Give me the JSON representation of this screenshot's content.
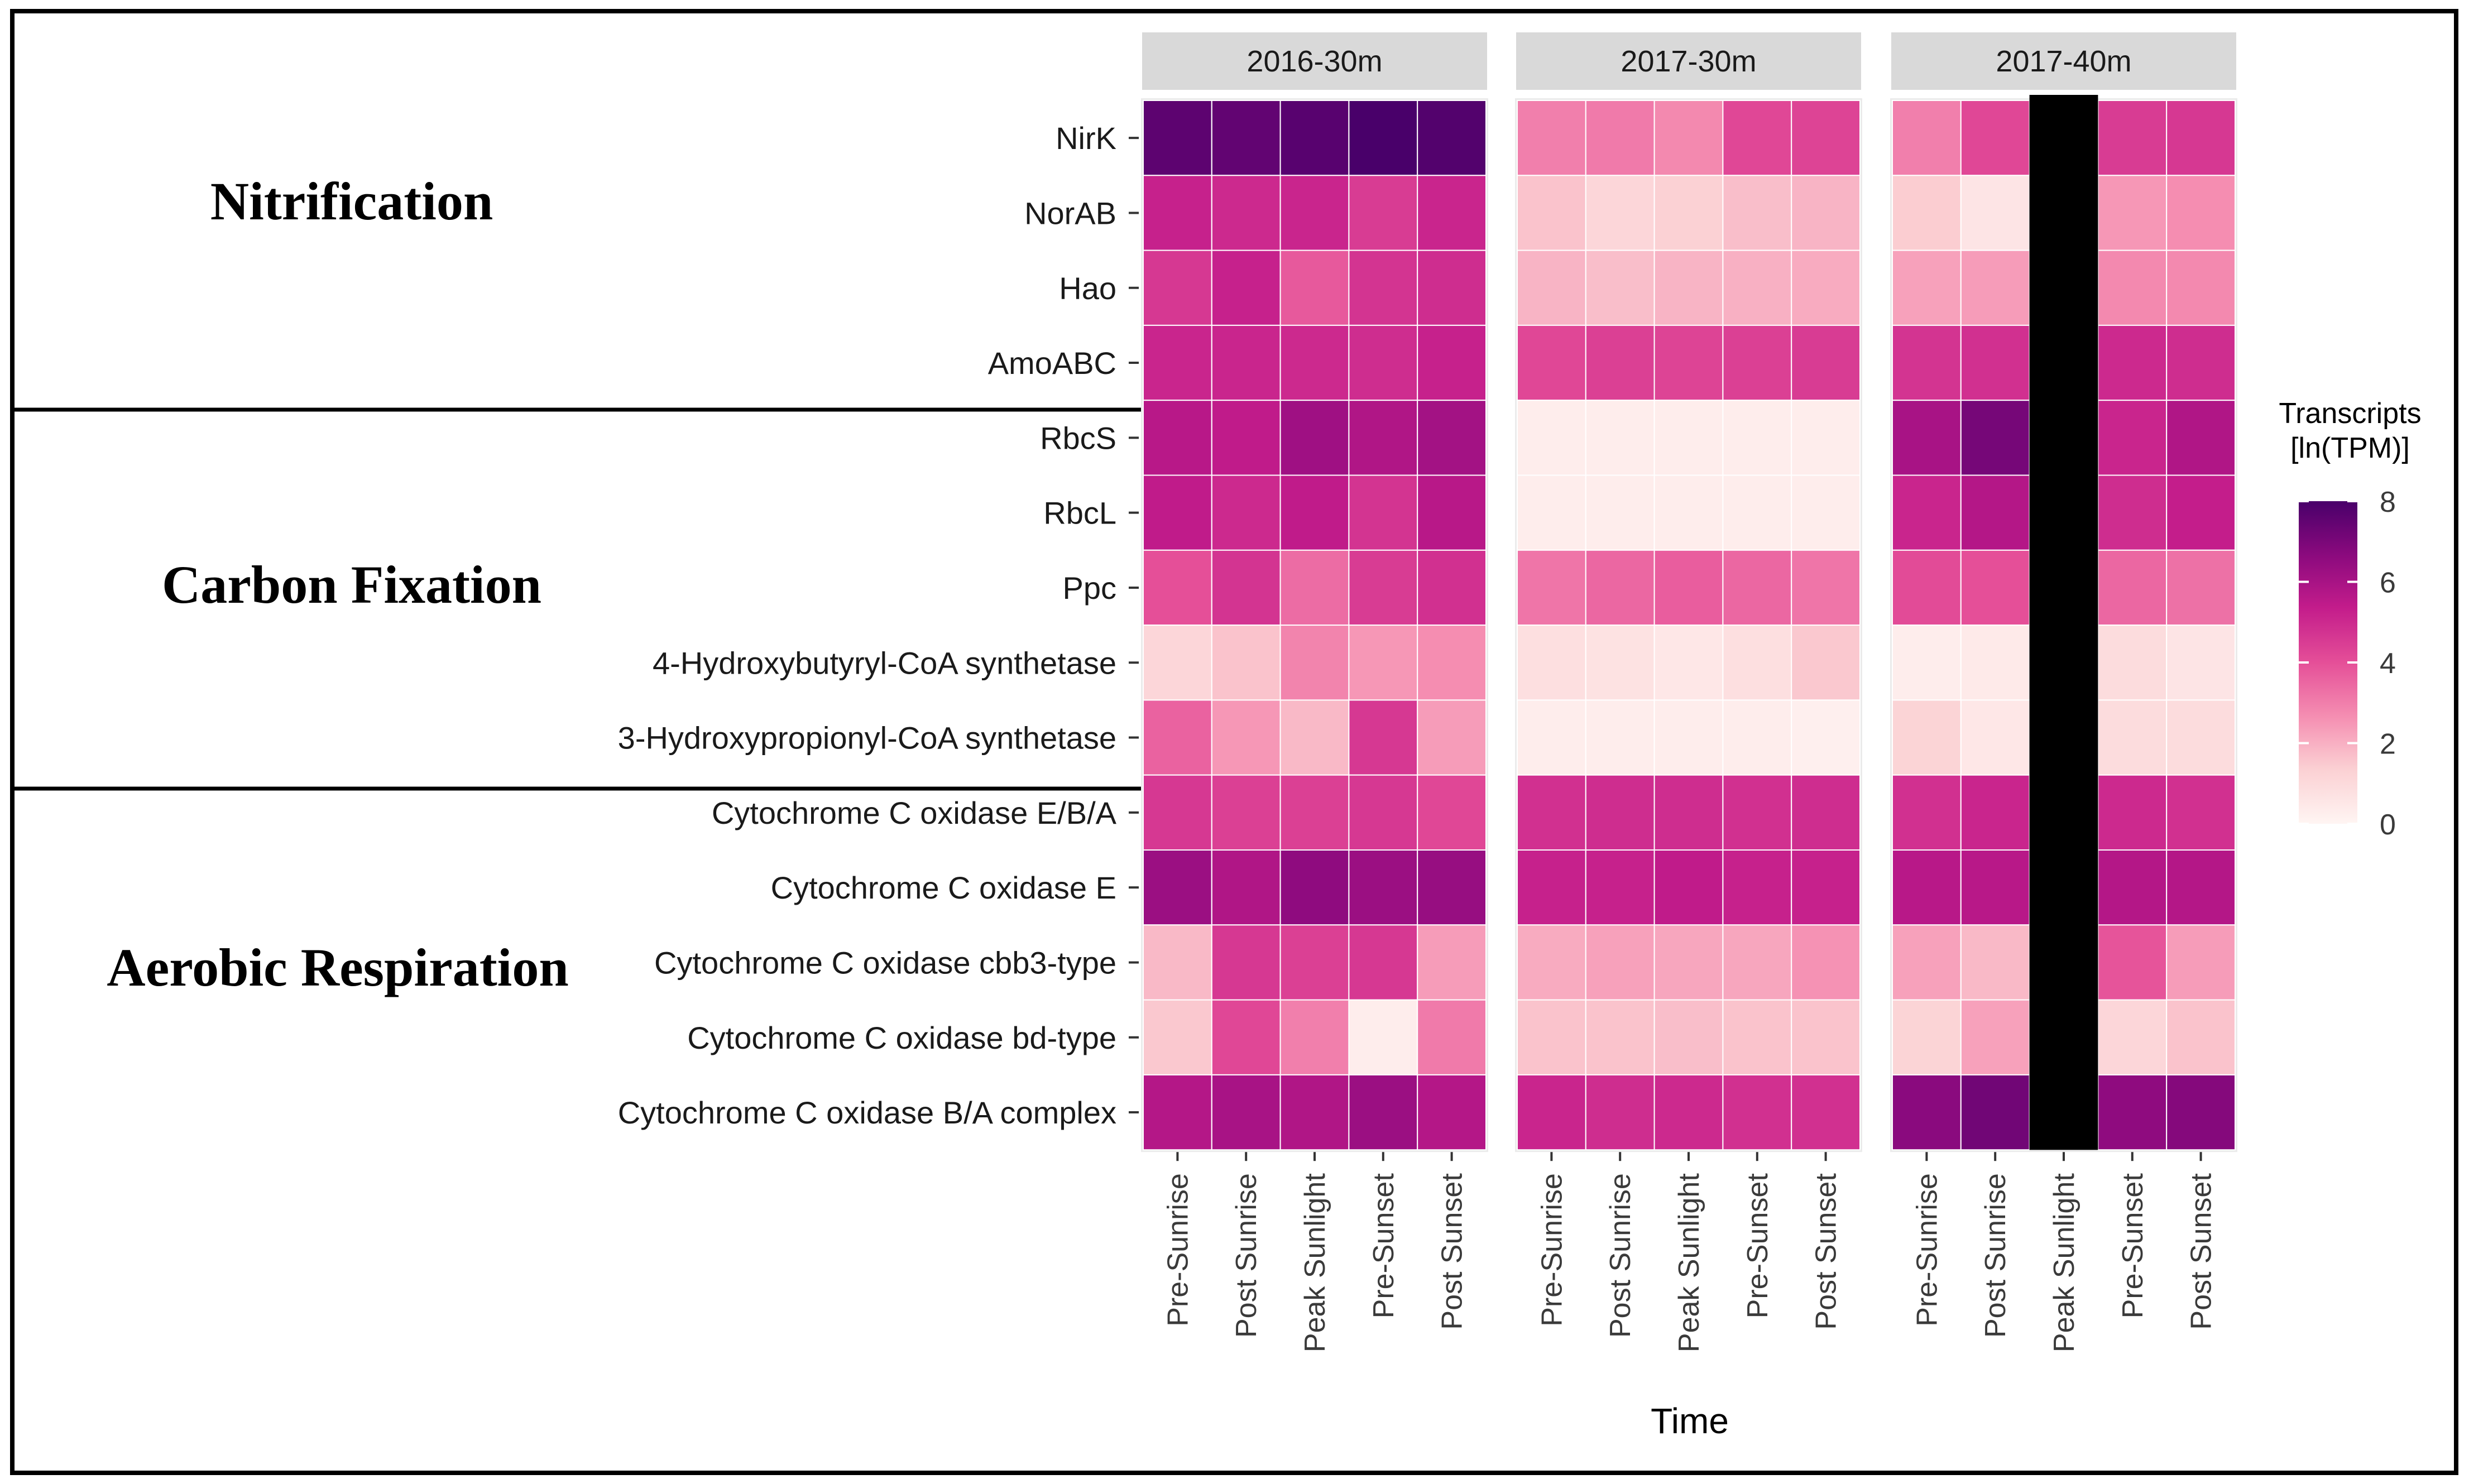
{
  "chart_data": {
    "type": "heatmap",
    "xlabel": "Time",
    "facets": [
      "2016-30m",
      "2017-30m",
      "2017-40m"
    ],
    "time_points": [
      "Pre-Sunrise",
      "Post Sunrise",
      "Peak Sunlight",
      "Pre-Sunset",
      "Post Sunset"
    ],
    "genes": [
      "NirK",
      "NorAB",
      "Hao",
      "AmoABC",
      "RbcS",
      "RbcL",
      "Ppc",
      "4-Hydroxybutyryl-CoA synthetase",
      "3-Hydroxypropionyl-CoA synthetase",
      "Cytochrome C oxidase E/B/A",
      "Cytochrome C oxidase E",
      "Cytochrome C oxidase cbb3-type",
      "Cytochrome C oxidase bd-type",
      "Cytochrome C oxidase B/A complex"
    ],
    "groups": [
      {
        "label": "Nitrification",
        "genes": [
          "NirK",
          "NorAB",
          "Hao",
          "AmoABC"
        ]
      },
      {
        "label": "Carbon Fixation",
        "genes": [
          "RbcS",
          "RbcL",
          "Ppc",
          "4-Hydroxybutyryl-CoA synthetase",
          "3-Hydroxypropionyl-CoA synthetase"
        ]
      },
      {
        "label": "Aerobic Respiration",
        "genes": [
          "Cytochrome C oxidase E/B/A",
          "Cytochrome C oxidase E",
          "Cytochrome C oxidase cbb3-type",
          "Cytochrome C oxidase bd-type",
          "Cytochrome C oxidase B/A complex"
        ]
      }
    ],
    "values": {
      "2016-30m": [
        [
          7.6,
          7.5,
          7.7,
          8.0,
          7.8
        ],
        [
          5.2,
          5.0,
          5.1,
          4.5,
          5.1
        ],
        [
          4.6,
          5.2,
          3.8,
          4.7,
          4.9
        ],
        [
          5.1,
          5.1,
          5.0,
          4.9,
          5.2
        ],
        [
          5.6,
          5.4,
          6.2,
          5.8,
          6.1
        ],
        [
          5.4,
          5.0,
          5.4,
          4.7,
          5.6
        ],
        [
          4.0,
          4.7,
          3.4,
          4.5,
          4.8
        ],
        [
          1.1,
          1.6,
          2.9,
          2.5,
          2.7
        ],
        [
          3.6,
          2.5,
          1.8,
          4.6,
          2.4
        ],
        [
          4.6,
          4.4,
          4.4,
          4.6,
          4.2
        ],
        [
          6.3,
          5.8,
          6.6,
          6.3,
          6.4
        ],
        [
          1.8,
          4.6,
          4.4,
          4.6,
          2.4
        ],
        [
          1.5,
          4.2,
          3.0,
          0.3,
          3.1
        ],
        [
          5.7,
          6.0,
          5.8,
          6.3,
          5.7
        ]
      ],
      "2017-30m": [
        [
          3.0,
          3.1,
          2.8,
          4.2,
          4.3
        ],
        [
          1.6,
          1.1,
          1.3,
          1.7,
          1.9
        ],
        [
          1.9,
          1.7,
          1.9,
          2.0,
          2.1
        ],
        [
          4.2,
          4.4,
          4.3,
          4.4,
          4.5
        ],
        [
          0.3,
          0.3,
          0.3,
          0.3,
          0.3
        ],
        [
          0.3,
          0.3,
          0.3,
          0.3,
          0.3
        ],
        [
          3.2,
          3.5,
          3.7,
          3.5,
          3.2
        ],
        [
          0.8,
          0.7,
          0.5,
          0.8,
          1.5
        ],
        [
          0.3,
          0.3,
          0.3,
          0.3,
          0.2
        ],
        [
          4.8,
          4.9,
          4.9,
          4.8,
          4.9
        ],
        [
          5.2,
          5.2,
          5.4,
          5.2,
          5.2
        ],
        [
          2.1,
          2.3,
          2.2,
          2.2,
          2.6
        ],
        [
          1.6,
          1.6,
          1.7,
          1.6,
          1.6
        ],
        [
          5.1,
          4.9,
          5.0,
          4.8,
          4.8
        ]
      ],
      "2017-40m": [
        [
          3.0,
          4.2,
          null,
          4.5,
          4.6
        ],
        [
          1.4,
          0.6,
          null,
          2.5,
          2.7
        ],
        [
          2.3,
          2.4,
          null,
          2.8,
          2.8
        ],
        [
          4.7,
          4.8,
          null,
          5.0,
          4.9
        ],
        [
          6.0,
          7.1,
          null,
          5.1,
          5.8
        ],
        [
          5.1,
          5.7,
          null,
          4.9,
          5.3
        ],
        [
          4.1,
          4.0,
          null,
          3.5,
          3.3
        ],
        [
          0.3,
          0.4,
          null,
          0.9,
          0.6
        ],
        [
          1.2,
          0.5,
          null,
          0.9,
          0.9
        ],
        [
          4.8,
          5.1,
          null,
          5.0,
          4.8
        ],
        [
          5.6,
          5.6,
          null,
          5.7,
          5.7
        ],
        [
          2.3,
          1.8,
          null,
          3.9,
          2.4
        ],
        [
          1.2,
          2.3,
          null,
          1.1,
          1.6
        ],
        [
          6.7,
          7.2,
          null,
          6.6,
          6.8
        ]
      ]
    },
    "missing_color": "#000000",
    "legend": {
      "title_line1": "Transcripts",
      "title_line2": "[ln(TPM)]",
      "ticks": [
        "8",
        "6",
        "4",
        "2",
        "0"
      ],
      "tick_values": [
        8,
        6,
        4,
        2,
        0
      ],
      "range": [
        0,
        8
      ],
      "placement": "right"
    },
    "colorscale": [
      "#fff5f3",
      "#fbd0d3",
      "#f58fb2",
      "#e54f98",
      "#c31c8b",
      "#8c0a7e",
      "#49006a"
    ]
  }
}
